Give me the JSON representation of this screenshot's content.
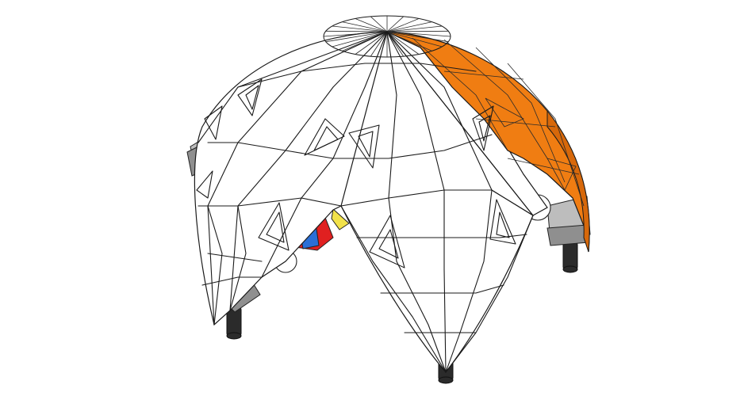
{
  "scene": {
    "model": "geodesic dome",
    "colors": {
      "background": "#ffffff",
      "shell_light": "#ffffff",
      "shell_shade": "#e8e8e8",
      "shell_dark": "#cfcfcf",
      "accent_panel": "#f07d12",
      "accent_panel_dark": "#d7680a",
      "leg": "#2b2b2b",
      "inner_red": "#e02020",
      "inner_blue": "#2a6fd6",
      "inner_yellow": "#f2e24a",
      "bracket_grey": "#b8b8b8"
    }
  }
}
